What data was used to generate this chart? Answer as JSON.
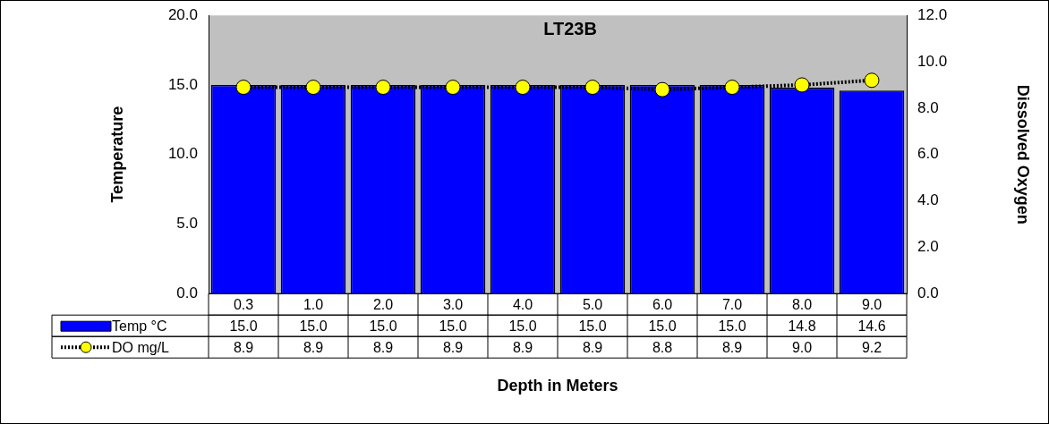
{
  "chart_data": {
    "type": "bar",
    "title": "LT23B",
    "xlabel": "Depth in Meters",
    "ylabel": "Temperature",
    "y2label": "Dissolved Oxygen",
    "categories": [
      "0.3",
      "1.0",
      "2.0",
      "3.0",
      "4.0",
      "5.0",
      "6.0",
      "7.0",
      "8.0",
      "9.0"
    ],
    "series": [
      {
        "name": "Temp °C",
        "color": "#0000ff",
        "values": [
          15.0,
          15.0,
          15.0,
          15.0,
          15.0,
          15.0,
          15.0,
          15.0,
          14.8,
          14.6
        ],
        "value_labels": [
          "15.0",
          "15.0",
          "15.0",
          "15.0",
          "15.0",
          "15.0",
          "15.0",
          "15.0",
          "14.8",
          "14.6"
        ]
      },
      {
        "name": "DO mg/L",
        "type": "line",
        "axis": "y2",
        "color": "#ffff00",
        "marker": "circle",
        "line_style": "dotted",
        "values": [
          8.9,
          8.9,
          8.9,
          8.9,
          8.9,
          8.9,
          8.8,
          8.9,
          9.0,
          9.2
        ],
        "value_labels": [
          "8.9",
          "8.9",
          "8.9",
          "8.9",
          "8.9",
          "8.9",
          "8.8",
          "8.9",
          "9.0",
          "9.2"
        ]
      }
    ],
    "ylim": [
      0,
      20
    ],
    "yticks": [
      {
        "value": 0,
        "label": "0.0"
      },
      {
        "value": 5,
        "label": "5.0"
      },
      {
        "value": 10,
        "label": "10.0"
      },
      {
        "value": 15,
        "label": "15.0"
      },
      {
        "value": 20,
        "label": "20.0"
      }
    ],
    "y2lim": [
      0,
      12
    ],
    "y2ticks": [
      {
        "value": 0,
        "label": "0.0"
      },
      {
        "value": 2,
        "label": "2.0"
      },
      {
        "value": 4,
        "label": "4.0"
      },
      {
        "value": 6,
        "label": "6.0"
      },
      {
        "value": 8,
        "label": "8.0"
      },
      {
        "value": 10,
        "label": "10.0"
      },
      {
        "value": 12,
        "label": "12.0"
      }
    ],
    "grid": false,
    "legend": "bottom"
  }
}
